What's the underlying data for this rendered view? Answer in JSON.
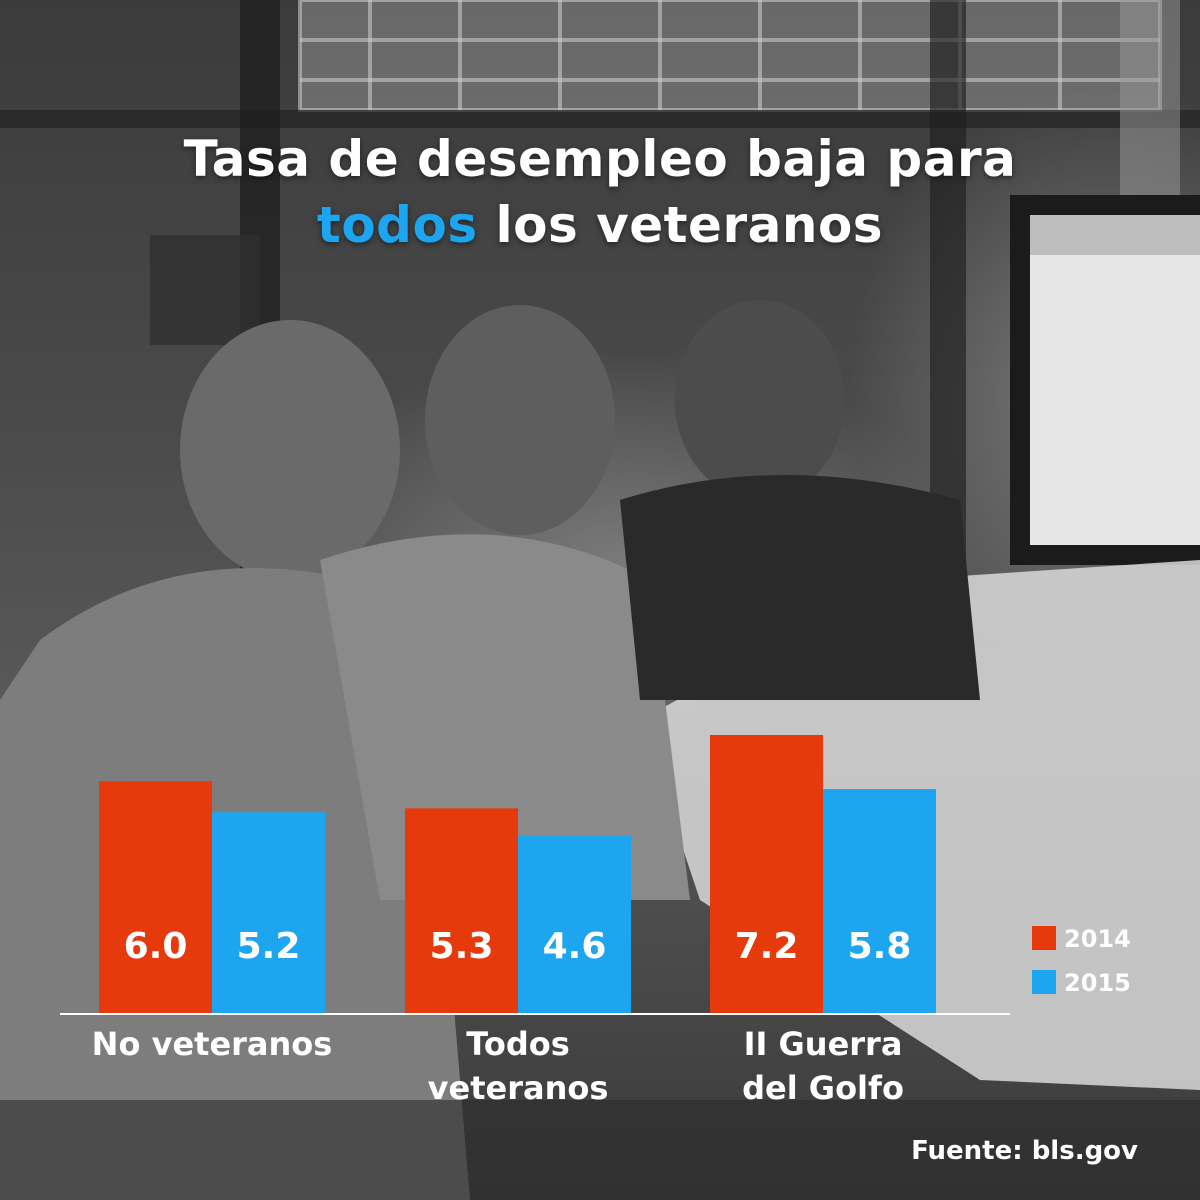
{
  "title": {
    "line1": "Tasa de desempleo baja para",
    "line2_accent": "todos",
    "line2_rest": " los veteranos"
  },
  "colors": {
    "series_2014": "#e63a0c",
    "series_2015": "#1ea5ef",
    "accent": "#1ea5ef"
  },
  "chart_data": {
    "type": "bar",
    "title": "Tasa de desempleo baja para todos los veteranos",
    "categories": [
      [
        "No veteranos"
      ],
      [
        "Todos",
        "veteranos"
      ],
      [
        "II Guerra",
        "del Golfo"
      ]
    ],
    "series": [
      {
        "name": "2014",
        "values": [
          6.0,
          5.3,
          7.2
        ]
      },
      {
        "name": "2015",
        "values": [
          5.2,
          4.6,
          5.8
        ]
      }
    ],
    "value_labels": [
      [
        "6.0",
        "5.3",
        "7.2"
      ],
      [
        "5.2",
        "4.6",
        "5.8"
      ]
    ],
    "ylim": [
      0,
      7.2
    ],
    "grid": false,
    "legend_position": "right"
  },
  "source": "Fuente: bls.gov"
}
